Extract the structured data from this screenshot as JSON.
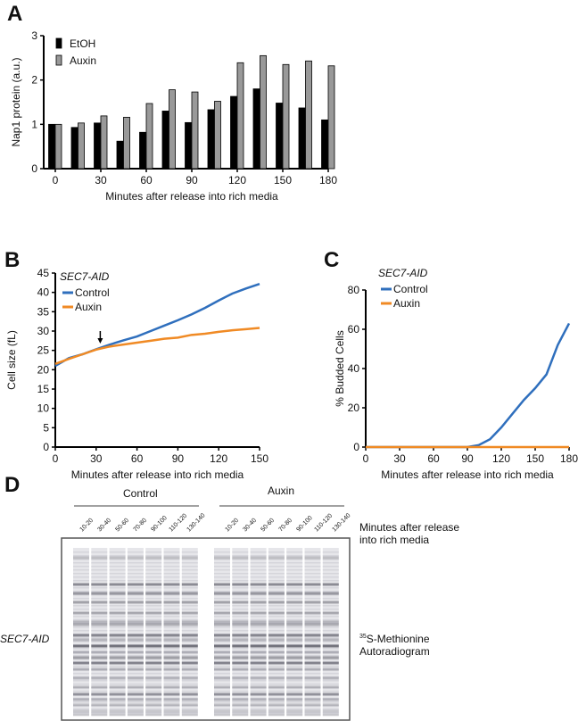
{
  "panels": {
    "a": "A",
    "b": "B",
    "c": "C",
    "d": "D"
  },
  "chart_data": [
    {
      "type": "bar",
      "title": "",
      "ylabel": "Nap1 protein (a.u.)",
      "xlabel": "Minutes after release into rich media",
      "x": [
        0,
        15,
        30,
        45,
        60,
        75,
        90,
        105,
        120,
        135,
        150,
        165,
        180
      ],
      "xticks": [
        0,
        30,
        60,
        90,
        120,
        150,
        180
      ],
      "yticks": [
        0,
        1,
        2,
        3
      ],
      "ylim": [
        0,
        3
      ],
      "legend": "top-left",
      "series": [
        {
          "name": "EtOH",
          "color": "#000000",
          "values": [
            1.0,
            0.93,
            1.03,
            0.62,
            0.82,
            1.3,
            1.04,
            1.33,
            1.63,
            1.8,
            1.48,
            1.37,
            1.1
          ]
        },
        {
          "name": "Auxin",
          "color": "#999999",
          "values": [
            1.0,
            1.03,
            1.19,
            1.16,
            1.47,
            1.78,
            1.73,
            1.52,
            2.39,
            2.55,
            2.35,
            2.43,
            2.32
          ]
        }
      ]
    },
    {
      "type": "line",
      "legend_title": "SEC7-AID",
      "ylabel": "Cell size (fL)",
      "xlabel": "Minutes after release into rich media",
      "xlim": [
        0,
        150
      ],
      "ylim": [
        0,
        45
      ],
      "xticks": [
        0,
        30,
        60,
        90,
        120,
        150
      ],
      "yticks": [
        0,
        5,
        10,
        15,
        20,
        25,
        30,
        35,
        40,
        45
      ],
      "annotation": {
        "type": "arrow",
        "x": 33
      },
      "legend": "top-left",
      "x": [
        0,
        10,
        20,
        30,
        40,
        50,
        60,
        70,
        80,
        90,
        100,
        110,
        120,
        130,
        140,
        150
      ],
      "series": [
        {
          "name": "Control",
          "color": "#2f6fbd",
          "values": [
            21,
            23,
            24,
            25.3,
            26.5,
            27.6,
            28.6,
            30,
            31.4,
            32.8,
            34.3,
            36,
            37.9,
            39.7,
            41,
            42.2
          ]
        },
        {
          "name": "Auxin",
          "color": "#f08a24",
          "values": [
            21.5,
            22.8,
            24,
            25.2,
            26,
            26.5,
            27,
            27.5,
            28,
            28.3,
            29,
            29.3,
            29.8,
            30.2,
            30.5,
            30.8
          ]
        }
      ]
    },
    {
      "type": "line",
      "legend_title": "SEC7-AID",
      "ylabel": "% Budded Cells",
      "xlabel": "Minutes after release into rich media",
      "xlim": [
        0,
        180
      ],
      "ylim": [
        0,
        80
      ],
      "xticks": [
        0,
        30,
        60,
        90,
        120,
        150,
        180
      ],
      "yticks": [
        0,
        20,
        40,
        60,
        80
      ],
      "legend": "top-left",
      "x": [
        0,
        30,
        60,
        90,
        100,
        110,
        120,
        130,
        140,
        150,
        160,
        170,
        180
      ],
      "series": [
        {
          "name": "Control",
          "color": "#2f6fbd",
          "values": [
            0,
            0,
            0,
            0,
            1,
            4,
            10,
            17,
            24,
            30,
            37,
            52,
            63
          ]
        },
        {
          "name": "Auxin",
          "color": "#f08a24",
          "values": [
            0,
            0,
            0,
            0,
            0,
            0,
            0,
            0,
            0,
            0,
            0,
            0,
            0
          ]
        }
      ]
    }
  ],
  "gel": {
    "groups": [
      "Control",
      "Auxin"
    ],
    "lanes": [
      "10-20",
      "30-40",
      "50-60",
      "70-80",
      "90-100",
      "110-120",
      "130-140"
    ],
    "minutes_label_1": "Minutes after release",
    "minutes_label_2": "into rich media",
    "strain": "SEC7-AID",
    "label_sup": "35",
    "label_1": "S-Methionine",
    "label_2": "Autoradiogram"
  }
}
